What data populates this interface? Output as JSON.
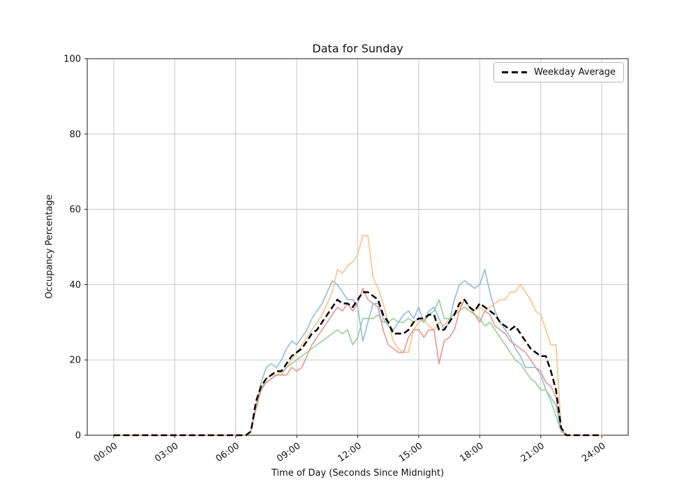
{
  "figure": {
    "background": "#ffffff",
    "grid_color": "#c6c6c6",
    "spine_color": "#1a1a1a"
  },
  "chart_data": {
    "type": "line",
    "title": "Data for Sunday",
    "xlabel": "Time of Day (Seconds Since Midnight)",
    "ylabel": "Occupancy Percentage",
    "xlim": [
      -1.3,
      25.3
    ],
    "ylim": [
      0,
      100
    ],
    "grid": true,
    "x_ticks": {
      "values": [
        0,
        3,
        6,
        9,
        12,
        15,
        18,
        21,
        24
      ],
      "labels": [
        "00:00",
        "03:00",
        "06:00",
        "09:00",
        "12:00",
        "15:00",
        "18:00",
        "21:00",
        "24:00"
      ]
    },
    "y_ticks": [
      0,
      20,
      40,
      60,
      80,
      100
    ],
    "legend": {
      "position": "upper right",
      "entries": [
        "Weekday Average"
      ]
    },
    "x_hours": [
      0,
      3,
      6,
      6.5,
      6.75,
      7,
      7.25,
      7.5,
      7.75,
      8,
      8.25,
      8.5,
      8.75,
      9,
      9.25,
      9.5,
      9.75,
      10,
      10.25,
      10.5,
      10.75,
      11,
      11.25,
      11.5,
      11.75,
      12,
      12.25,
      12.5,
      12.75,
      13,
      13.25,
      13.5,
      13.75,
      14,
      14.25,
      14.5,
      14.75,
      15,
      15.25,
      15.5,
      15.75,
      16,
      16.25,
      16.5,
      16.75,
      17,
      17.25,
      17.5,
      17.75,
      18,
      18.25,
      18.5,
      18.75,
      19,
      19.25,
      19.5,
      19.75,
      20,
      20.25,
      20.5,
      20.75,
      21,
      21.25,
      21.5,
      21.75,
      22,
      22.25,
      23,
      24
    ],
    "series": [
      {
        "name": "sunday-series-1",
        "color": "#8fbbda",
        "width": 1.6,
        "dash": null,
        "values": [
          0,
          0,
          0,
          0,
          1,
          8,
          14,
          18,
          19,
          18,
          20,
          23,
          25,
          24,
          26,
          28,
          31,
          33,
          35,
          38,
          41,
          40,
          38,
          36,
          36,
          34,
          25,
          30,
          35,
          35,
          31,
          29,
          28,
          30,
          32,
          33,
          31,
          34,
          30,
          33,
          34,
          31,
          28,
          30,
          36,
          40,
          41,
          40,
          39,
          40,
          44,
          38,
          33,
          30,
          28,
          26,
          23,
          21,
          18,
          18,
          18,
          16,
          12,
          10,
          8,
          1,
          0,
          0,
          0
        ]
      },
      {
        "name": "sunday-series-2",
        "color": "#ffbf86",
        "width": 1.6,
        "dash": null,
        "values": [
          0,
          0,
          0,
          0,
          1,
          7,
          12,
          15,
          16,
          16,
          17,
          18,
          20,
          22,
          24,
          26,
          28,
          30,
          32,
          35,
          38,
          44,
          43,
          45,
          46,
          48,
          53,
          53,
          42,
          39,
          35,
          30,
          25,
          23,
          22,
          22,
          28,
          30,
          31,
          29,
          28,
          30,
          29,
          31,
          32,
          34,
          36,
          34,
          33,
          34,
          33,
          34,
          35,
          36,
          36,
          38,
          38,
          40,
          38,
          36,
          33,
          32,
          28,
          24,
          24,
          2,
          0,
          0,
          0
        ]
      },
      {
        "name": "sunday-series-3",
        "color": "#95cf95",
        "width": 1.6,
        "dash": null,
        "values": [
          0,
          0,
          0,
          0,
          1,
          8,
          13,
          14,
          15,
          16,
          16,
          18,
          19,
          20,
          21,
          22,
          23,
          24,
          25,
          26,
          27,
          28,
          27,
          28,
          24,
          26,
          31,
          31,
          31,
          32,
          30,
          30,
          31,
          30,
          30,
          31,
          30,
          31,
          30,
          32,
          33,
          36,
          31,
          31,
          32,
          33,
          34,
          33,
          32,
          31,
          29,
          30,
          28,
          26,
          24,
          22,
          20,
          19,
          17,
          15,
          14,
          12,
          12,
          9,
          5,
          1,
          0,
          0,
          0
        ]
      },
      {
        "name": "sunday-series-4",
        "color": "#ea9394",
        "width": 1.6,
        "dash": null,
        "values": [
          0,
          0,
          0,
          0,
          1,
          7,
          12,
          14,
          15,
          16,
          16,
          16,
          18,
          17,
          18,
          21,
          24,
          26,
          28,
          30,
          32,
          34,
          33,
          35,
          33,
          35,
          39,
          36,
          35,
          34,
          28,
          24,
          23,
          22,
          22,
          26,
          28,
          28,
          26,
          28,
          28,
          19,
          25,
          26,
          28,
          33,
          36,
          34,
          32,
          30,
          33,
          32,
          29,
          28,
          27,
          25,
          24,
          23,
          22,
          20,
          18,
          17,
          14,
          13,
          10,
          2,
          0,
          0,
          0
        ]
      },
      {
        "name": "Weekday Average",
        "color": "#000000",
        "width": 2.5,
        "dash": [
          9,
          4.5
        ],
        "values": [
          0,
          0,
          0,
          0,
          1,
          9,
          13,
          15,
          16,
          17,
          17,
          19,
          21,
          22,
          23,
          25,
          27,
          28,
          30,
          32,
          34,
          36,
          35,
          35,
          34,
          36,
          38,
          38,
          37,
          36,
          32,
          30,
          27,
          27,
          27,
          28,
          30,
          31,
          31,
          32,
          32,
          28,
          28,
          30,
          32,
          35,
          36,
          34,
          33,
          35,
          34,
          33,
          32,
          30,
          29,
          28,
          29,
          27,
          25,
          23,
          22,
          21,
          21,
          17,
          12,
          2,
          0,
          0,
          0
        ]
      }
    ]
  }
}
